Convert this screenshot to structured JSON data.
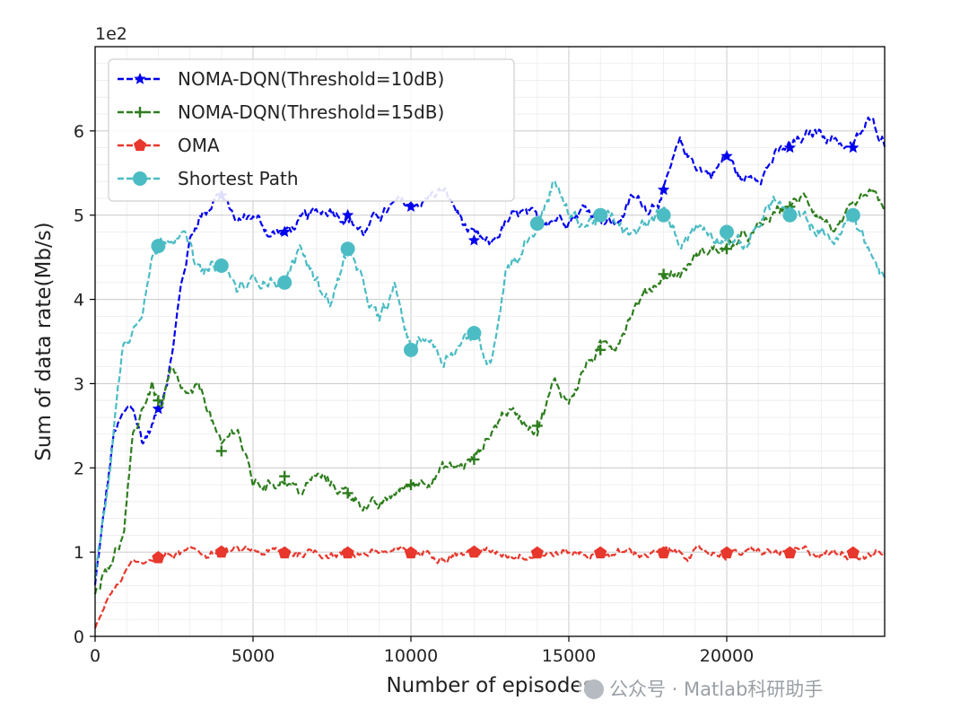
{
  "chart_data": {
    "type": "line",
    "title": "",
    "xlabel": "Number of episodes",
    "ylabel": "Sum of data rate(Mb/s)",
    "y_multiplier_label": "1e2",
    "xlim": [
      0,
      25000
    ],
    "ylim": [
      0,
      7
    ],
    "x_ticks": [
      0,
      5000,
      10000,
      15000,
      20000
    ],
    "x_tick_labels": [
      "0",
      "5000",
      "10000",
      "15000",
      "20000"
    ],
    "y_ticks": [
      0,
      1,
      2,
      3,
      4,
      5,
      6
    ],
    "y_tick_labels": [
      "0",
      "1",
      "2",
      "3",
      "4",
      "5",
      "6"
    ],
    "grid": true,
    "legend_position": "top-left",
    "series": [
      {
        "name": "NOMA-DQN(Threshold=10dB)",
        "color": "#0000ee",
        "marker": "star",
        "x": [
          0,
          300,
          600,
          900,
          1200,
          1500,
          1800,
          2100,
          2400,
          2700,
          3000,
          3300,
          3600,
          3900,
          4200,
          4500,
          5000,
          5500,
          6000,
          6500,
          7000,
          7500,
          8000,
          8500,
          9000,
          9500,
          10000,
          10500,
          11000,
          11500,
          12000,
          12500,
          13000,
          13500,
          14000,
          14500,
          15000,
          15500,
          16000,
          16500,
          17000,
          17500,
          18000,
          18500,
          19000,
          19500,
          20000,
          20500,
          21000,
          21500,
          22000,
          22500,
          23000,
          23500,
          24000,
          24500,
          25000
        ],
        "values": [
          0.6,
          1.5,
          2.4,
          2.6,
          2.7,
          2.3,
          2.5,
          2.8,
          3.3,
          4.1,
          4.7,
          5.0,
          5.1,
          5.3,
          5.1,
          4.9,
          5.0,
          4.8,
          4.8,
          4.9,
          5.0,
          5.1,
          5.0,
          4.8,
          5.0,
          5.1,
          5.1,
          5.2,
          5.3,
          5.0,
          4.7,
          4.6,
          4.9,
          5.0,
          4.9,
          5.0,
          5.0,
          5.1,
          5.0,
          4.9,
          5.2,
          5.1,
          5.3,
          5.8,
          5.6,
          5.5,
          5.7,
          5.4,
          5.5,
          5.7,
          5.8,
          5.9,
          6.0,
          5.9,
          5.8,
          6.1,
          5.9
        ]
      },
      {
        "name": "NOMA-DQN(Threshold=15dB)",
        "color": "#2e7d1e",
        "marker": "plus",
        "x": [
          0,
          300,
          600,
          900,
          1200,
          1500,
          1800,
          2100,
          2400,
          2700,
          3000,
          3300,
          3600,
          4000,
          4500,
          5000,
          5500,
          6000,
          6500,
          7000,
          7500,
          8000,
          8500,
          9000,
          9500,
          10000,
          10500,
          11000,
          11500,
          12000,
          12500,
          13000,
          13500,
          14000,
          14500,
          15000,
          15500,
          16000,
          16500,
          17000,
          17500,
          18000,
          18500,
          19000,
          19500,
          20000,
          20500,
          21000,
          21500,
          22000,
          22500,
          23000,
          23500,
          24000,
          24500,
          25000
        ],
        "values": [
          0.5,
          0.8,
          1.0,
          1.2,
          2.3,
          2.7,
          3.0,
          2.7,
          3.1,
          2.9,
          2.8,
          2.9,
          2.7,
          2.2,
          2.5,
          1.8,
          1.8,
          1.9,
          1.7,
          1.9,
          1.8,
          1.7,
          1.6,
          1.5,
          1.7,
          1.8,
          1.9,
          2.0,
          2.0,
          2.1,
          2.4,
          2.7,
          2.6,
          2.5,
          3.0,
          2.8,
          3.2,
          3.4,
          3.5,
          3.9,
          4.1,
          4.3,
          4.3,
          4.5,
          4.6,
          4.6,
          4.7,
          4.8,
          5.0,
          5.1,
          5.2,
          5.0,
          4.8,
          5.0,
          5.2,
          5.1
        ]
      },
      {
        "name": "OMA",
        "color": "#e8372c",
        "marker": "pentagon",
        "x": [
          0,
          200,
          400,
          600,
          800,
          1000,
          1200,
          1500,
          1800,
          2100,
          2500,
          3000,
          4000,
          5000,
          6000,
          7000,
          8000,
          9000,
          10000,
          11000,
          12000,
          13000,
          14000,
          15000,
          16000,
          17000,
          18000,
          19000,
          20000,
          21000,
          22000,
          23000,
          24000,
          25000
        ],
        "values": [
          0.1,
          0.25,
          0.45,
          0.55,
          0.65,
          0.8,
          0.9,
          0.85,
          0.9,
          0.95,
          0.97,
          0.98,
          1.0,
          1.0,
          0.99,
          1.0,
          0.99,
          1.0,
          0.99,
          0.99,
          1.0,
          0.99,
          0.99,
          0.99,
          0.99,
          0.99,
          0.99,
          0.99,
          0.99,
          0.99,
          0.99,
          0.99,
          0.99,
          0.99
        ]
      },
      {
        "name": "Shortest Path",
        "color": "#4cbcc4",
        "marker": "circle",
        "x": [
          0,
          300,
          600,
          900,
          1200,
          1500,
          1800,
          2100,
          2400,
          2700,
          3000,
          3300,
          3600,
          4000,
          4500,
          5000,
          5500,
          6000,
          6500,
          7000,
          7500,
          8000,
          8500,
          9000,
          9500,
          10000,
          10500,
          11000,
          11500,
          12000,
          12500,
          13000,
          13500,
          14000,
          14500,
          15000,
          15500,
          16000,
          16500,
          17000,
          17500,
          18000,
          18500,
          19000,
          19500,
          20000,
          20500,
          21000,
          21500,
          22000,
          22500,
          23000,
          23500,
          24000,
          24500,
          25000
        ],
        "values": [
          0.7,
          1.5,
          2.5,
          3.5,
          3.7,
          4.0,
          4.5,
          4.7,
          4.8,
          4.9,
          4.6,
          4.3,
          4.3,
          4.4,
          4.1,
          4.2,
          4.3,
          4.2,
          4.6,
          4.2,
          4.0,
          4.6,
          4.1,
          3.7,
          4.1,
          3.4,
          3.6,
          3.3,
          3.5,
          3.6,
          3.2,
          4.4,
          4.6,
          4.9,
          5.4,
          5.0,
          4.9,
          5.0,
          4.9,
          4.7,
          4.9,
          5.0,
          4.7,
          4.9,
          4.8,
          4.8,
          4.6,
          4.9,
          5.2,
          5.0,
          4.9,
          4.8,
          4.7,
          5.0,
          4.6,
          4.2
        ]
      }
    ]
  },
  "watermark": {
    "text": "公众号 · Matlab科研助手"
  }
}
